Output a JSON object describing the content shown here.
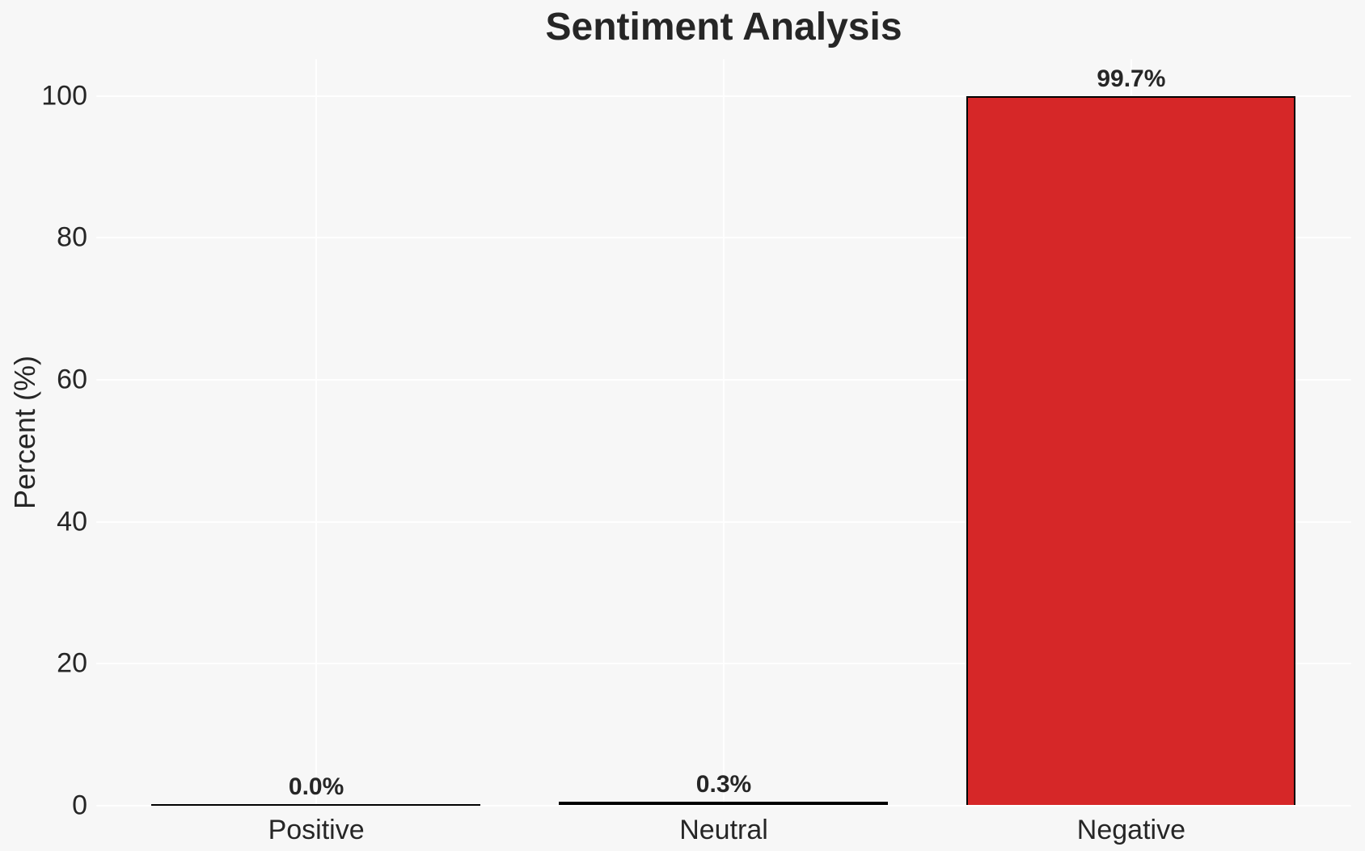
{
  "chart_data": {
    "type": "bar",
    "title": "Sentiment Analysis",
    "xlabel": "",
    "ylabel": "Percent (%)",
    "categories": [
      "Positive",
      "Neutral",
      "Negative"
    ],
    "values": [
      0.0,
      0.3,
      99.7
    ],
    "value_labels": [
      "0.0%",
      "0.3%",
      "99.7%"
    ],
    "yticks": [
      0,
      20,
      40,
      60,
      80,
      100
    ],
    "ylim": [
      0,
      105.2
    ],
    "xlim": [
      -0.54,
      2.54
    ],
    "bar_width": 0.8,
    "grid": true,
    "legend": false,
    "colors": {
      "background": "#f7f7f7",
      "grid": "#ffffff",
      "text": "#262626",
      "bar_fills": [
        "#000000",
        "#000000",
        "#d62728"
      ],
      "bar_edge": "#000000"
    }
  }
}
